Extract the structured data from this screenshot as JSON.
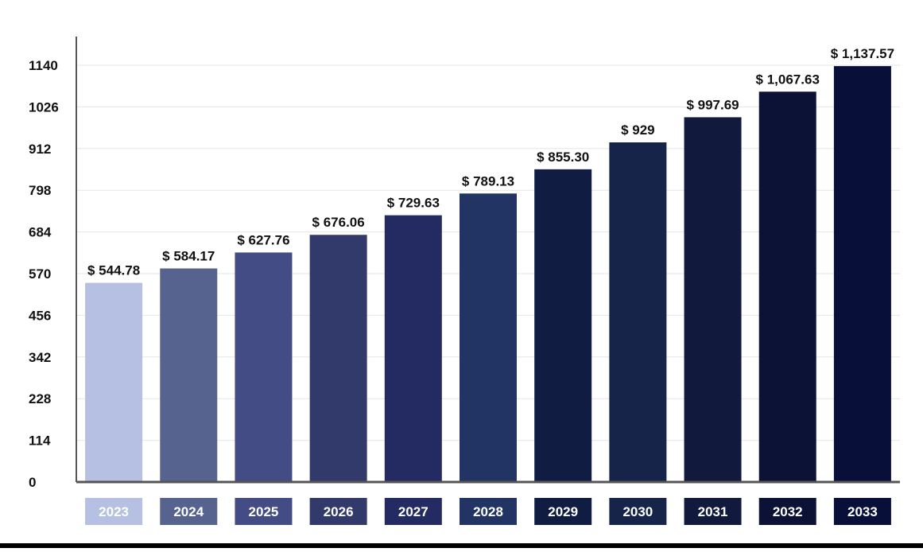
{
  "chart_data": {
    "type": "bar",
    "title": "",
    "xlabel": "",
    "ylabel": "",
    "categories": [
      "2023",
      "2024",
      "2025",
      "2026",
      "2027",
      "2028",
      "2029",
      "2030",
      "2031",
      "2032",
      "2033"
    ],
    "values": [
      544.78,
      584.17,
      627.76,
      676.06,
      729.63,
      789.13,
      855.3,
      929,
      997.69,
      1067.63,
      1137.57
    ],
    "value_labels": [
      "$ 544.78",
      "$ 584.17",
      "$ 627.76",
      "$ 676.06",
      "$ 729.63",
      "$ 789.13",
      "$ 855.30",
      "$ 929",
      "$ 997.69",
      "$ 1,067.63",
      "$ 1,137.57"
    ],
    "bar_colors": [
      "#b5c0e2",
      "#57638f",
      "#434c85",
      "#323a6c",
      "#242b62",
      "#213463",
      "#111c42",
      "#172449",
      "#11193c",
      "#0c1235",
      "#080f38"
    ],
    "yticks": [
      0,
      114,
      228,
      342,
      456,
      570,
      684,
      798,
      912,
      1026,
      1140
    ],
    "ylim": [
      0,
      1140
    ],
    "grid": true,
    "legend": "none",
    "axis_color": "#555555",
    "grid_color": "#e6e6e6"
  }
}
